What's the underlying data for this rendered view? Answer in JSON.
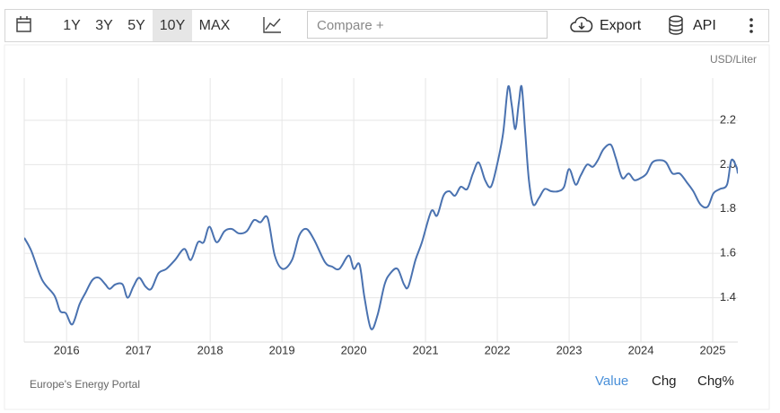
{
  "toolbar": {
    "ranges": [
      "1Y",
      "3Y",
      "5Y",
      "10Y",
      "MAX"
    ],
    "active_range": "10Y",
    "compare": "Compare +",
    "export": "Export",
    "api": "API"
  },
  "chart_data": {
    "type": "line",
    "unit": "USD/Liter",
    "color": "#4a72b0",
    "grid": true,
    "xlim": [
      2015.41,
      2025.35
    ],
    "xticks": [
      2016,
      2017,
      2018,
      2019,
      2020,
      2021,
      2022,
      2023,
      2024,
      2025
    ],
    "ylim": [
      1.2,
      2.39
    ],
    "yticks": [
      1.4,
      1.6,
      1.8,
      {
        "value": 2,
        "label": "2.0"
      },
      2.2
    ],
    "x": [
      2015.41,
      2015.51,
      2015.66,
      2015.83,
      2015.91,
      2015.99,
      2016.08,
      2016.18,
      2016.26,
      2016.36,
      2016.45,
      2016.54,
      2016.6,
      2016.68,
      2016.78,
      2016.85,
      2016.93,
      2017.01,
      2017.1,
      2017.18,
      2017.28,
      2017.39,
      2017.51,
      2017.64,
      2017.73,
      2017.83,
      2017.91,
      2017.99,
      2018.09,
      2018.2,
      2018.3,
      2018.4,
      2018.51,
      2018.61,
      2018.7,
      2018.8,
      2018.9,
      2019.01,
      2019.14,
      2019.24,
      2019.34,
      2019.45,
      2019.6,
      2019.7,
      2019.8,
      2019.93,
      2020.0,
      2020.08,
      2020.15,
      2020.24,
      2020.33,
      2020.43,
      2020.51,
      2020.61,
      2020.7,
      2020.76,
      2020.86,
      2020.95,
      2021.08,
      2021.16,
      2021.25,
      2021.33,
      2021.41,
      2021.49,
      2021.58,
      2021.66,
      2021.74,
      2021.83,
      2021.91,
      2021.99,
      2022.08,
      2022.15,
      2022.2,
      2022.25,
      2022.3,
      2022.34,
      2022.39,
      2022.44,
      2022.5,
      2022.58,
      2022.66,
      2022.75,
      2022.85,
      2022.93,
      2023.0,
      2023.09,
      2023.16,
      2023.25,
      2023.33,
      2023.4,
      2023.48,
      2023.58,
      2023.65,
      2023.74,
      2023.83,
      2023.91,
      2024.0,
      2024.08,
      2024.16,
      2024.26,
      2024.35,
      2024.44,
      2024.54,
      2024.64,
      2024.73,
      2024.83,
      2024.93,
      2025.01,
      2025.1,
      2025.2,
      2025.26,
      2025.33,
      2025.35
    ],
    "values": [
      1.67,
      1.61,
      1.48,
      1.41,
      1.34,
      1.33,
      1.28,
      1.37,
      1.42,
      1.48,
      1.49,
      1.46,
      1.44,
      1.46,
      1.46,
      1.4,
      1.45,
      1.49,
      1.45,
      1.44,
      1.51,
      1.53,
      1.57,
      1.62,
      1.57,
      1.65,
      1.65,
      1.72,
      1.65,
      1.7,
      1.71,
      1.69,
      1.7,
      1.75,
      1.74,
      1.76,
      1.59,
      1.53,
      1.57,
      1.68,
      1.71,
      1.66,
      1.56,
      1.54,
      1.53,
      1.59,
      1.53,
      1.55,
      1.4,
      1.26,
      1.32,
      1.46,
      1.51,
      1.53,
      1.46,
      1.45,
      1.57,
      1.65,
      1.79,
      1.77,
      1.86,
      1.88,
      1.86,
      1.9,
      1.89,
      1.96,
      2.01,
      1.93,
      1.9,
      1.99,
      2.14,
      2.35,
      2.27,
      2.16,
      2.28,
      2.35,
      2.14,
      1.93,
      1.82,
      1.85,
      1.89,
      1.88,
      1.88,
      1.9,
      1.98,
      1.91,
      1.95,
      2.0,
      1.99,
      2.02,
      2.07,
      2.09,
      2.03,
      1.94,
      1.96,
      1.93,
      1.94,
      1.96,
      2.01,
      2.02,
      2.01,
      1.96,
      1.96,
      1.92,
      1.88,
      1.82,
      1.81,
      1.87,
      1.89,
      1.91,
      2.02,
      1.99,
      1.96
    ]
  },
  "footer": {
    "source": "Europe's Energy Portal",
    "tabs": [
      "Value",
      "Chg",
      "Chg%"
    ],
    "active_tab": "Value"
  }
}
